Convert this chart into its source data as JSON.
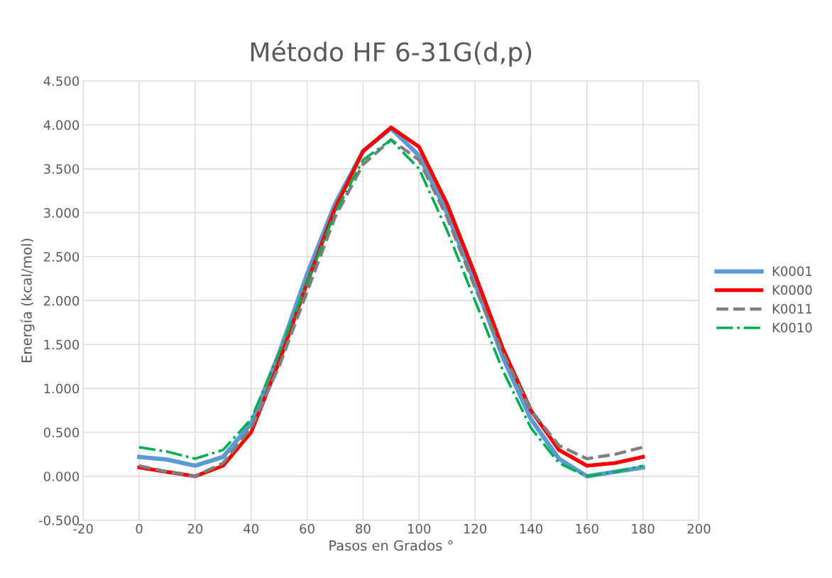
{
  "chart_data": {
    "type": "line",
    "title": "Método HF 6-31G(d,p)",
    "xlabel": "Pasos en Grados °",
    "ylabel": "Energía (kcal/mol)",
    "x": [
      0,
      10,
      20,
      30,
      40,
      50,
      60,
      70,
      80,
      90,
      100,
      110,
      120,
      130,
      140,
      150,
      160,
      170,
      180
    ],
    "series": [
      {
        "name": "K0001",
        "color": "#5b9bd5",
        "line_style": "solid",
        "values": [
          0.22,
          0.19,
          0.12,
          0.22,
          0.6,
          1.4,
          2.3,
          3.1,
          3.7,
          3.96,
          3.65,
          3.0,
          2.2,
          1.35,
          0.65,
          0.2,
          0.0,
          0.05,
          0.1
        ]
      },
      {
        "name": "K0000",
        "color": "#ff0000",
        "line_style": "solid",
        "values": [
          0.1,
          0.05,
          0.0,
          0.12,
          0.5,
          1.3,
          2.2,
          3.05,
          3.7,
          3.97,
          3.75,
          3.1,
          2.3,
          1.45,
          0.75,
          0.3,
          0.12,
          0.15,
          0.22
        ]
      },
      {
        "name": "K0011",
        "color": "#7f7f7f",
        "line_style": "dashed",
        "values": [
          0.12,
          0.05,
          0.0,
          0.15,
          0.55,
          1.25,
          2.1,
          2.95,
          3.55,
          3.83,
          3.6,
          2.95,
          2.15,
          1.4,
          0.75,
          0.35,
          0.2,
          0.25,
          0.33
        ]
      },
      {
        "name": "K0010",
        "color": "#00b050",
        "line_style": "dashdot",
        "values": [
          0.33,
          0.28,
          0.2,
          0.3,
          0.65,
          1.4,
          2.2,
          3.0,
          3.6,
          3.83,
          3.5,
          2.8,
          2.0,
          1.2,
          0.55,
          0.15,
          0.0,
          0.05,
          0.12
        ]
      }
    ],
    "xlim": [
      -20,
      200
    ],
    "xticks": [
      -20,
      0,
      20,
      40,
      60,
      80,
      100,
      120,
      140,
      160,
      180,
      200
    ],
    "ylim": [
      -0.5,
      4.5
    ],
    "yticks": [
      {
        "value": -0.5,
        "label": "-0.500"
      },
      {
        "value": 0,
        "label": "0.000"
      },
      {
        "value": 0.5,
        "label": "0.500"
      },
      {
        "value": 1,
        "label": "1.000"
      },
      {
        "value": 1.5,
        "label": "1.500"
      },
      {
        "value": 2,
        "label": "2.000"
      },
      {
        "value": 2.5,
        "label": "2.500"
      },
      {
        "value": 3,
        "label": "3.000"
      },
      {
        "value": 3.5,
        "label": "3.500"
      },
      {
        "value": 4,
        "label": "4.000"
      },
      {
        "value": 4.5,
        "label": "4.500"
      }
    ],
    "grid": true,
    "legend": "right",
    "marker": "none"
  }
}
